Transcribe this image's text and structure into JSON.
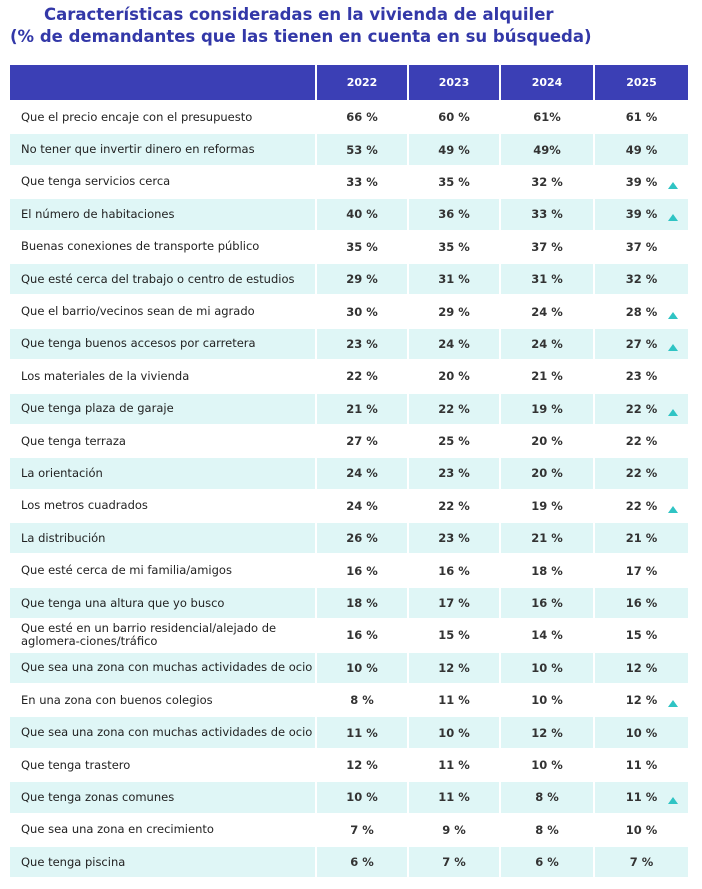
{
  "title": [
    "Características consideradas en la vivienda de alquiler",
    "(% de demandantes que las tienen en cuenta en su búsqueda)"
  ],
  "table": {
    "header": [
      "2022",
      "2023",
      "2024",
      "2025"
    ],
    "rows": [
      {
        "label": "Que el precio encaje con el presupuesto",
        "cells": [
          "66 %",
          "60 %",
          "61%",
          "61 %"
        ],
        "up": false
      },
      {
        "label": "No tener que invertir dinero en reformas",
        "cells": [
          "53 %",
          "49 %",
          "49%",
          "49 %"
        ],
        "up": false
      },
      {
        "label": "Que tenga servicios cerca",
        "cells": [
          "33 %",
          "35 %",
          "32 %",
          "39 %"
        ],
        "up": true
      },
      {
        "label": "El número de habitaciones",
        "cells": [
          "40 %",
          "36 %",
          "33 %",
          "39 %"
        ],
        "up": true
      },
      {
        "label": "Buenas conexiones de transporte público",
        "cells": [
          "35 %",
          "35 %",
          "37 %",
          "37 %"
        ],
        "up": false
      },
      {
        "label": "Que esté cerca del trabajo o centro de estudios",
        "cells": [
          "29 %",
          "31 %",
          "31 %",
          "32 %"
        ],
        "up": false
      },
      {
        "label": "Que el barrio/vecinos sean de mi agrado",
        "cells": [
          "30 %",
          "29 %",
          "24 %",
          "28 %"
        ],
        "up": true
      },
      {
        "label": "Que tenga buenos accesos por carretera",
        "cells": [
          "23 %",
          "24 %",
          "24 %",
          "27 %"
        ],
        "up": true
      },
      {
        "label": "Los materiales de la vivienda",
        "cells": [
          "22 %",
          "20 %",
          "21 %",
          "23 %"
        ],
        "up": false
      },
      {
        "label": "Que tenga plaza de garaje",
        "cells": [
          "21 %",
          "22 %",
          "19 %",
          "22 %"
        ],
        "up": true
      },
      {
        "label": "Que tenga terraza",
        "cells": [
          "27 %",
          "25 %",
          "20 %",
          "22 %"
        ],
        "up": false
      },
      {
        "label": "La orientación",
        "cells": [
          "24 %",
          "23 %",
          "20 %",
          "22 %"
        ],
        "up": false
      },
      {
        "label": "Los metros cuadrados",
        "cells": [
          "24 %",
          "22 %",
          "19 %",
          "22 %"
        ],
        "up": true
      },
      {
        "label": "La distribución",
        "cells": [
          "26 %",
          "23 %",
          "21 %",
          "21 %"
        ],
        "up": false
      },
      {
        "label": "Que esté cerca de mi familia/amigos",
        "cells": [
          "16 %",
          "16 %",
          "18 %",
          "17 %"
        ],
        "up": false
      },
      {
        "label": "Que tenga una altura que yo busco",
        "cells": [
          "18 %",
          "17 %",
          "16 %",
          "16 %"
        ],
        "up": false
      },
      {
        "label": "Que esté en un barrio residencial/alejado de aglomera-ciones/tráfico",
        "cells": [
          "16 %",
          "15 %",
          "14 %",
          "15 %"
        ],
        "up": false
      },
      {
        "label": "Que sea una zona con muchas actividades de ocio",
        "cells": [
          "10 %",
          "12 %",
          "10 %",
          "12 %"
        ],
        "up": false
      },
      {
        "label": "En una zona con buenos colegios",
        "cells": [
          "8 %",
          "11 %",
          "10 %",
          "12 %"
        ],
        "up": true
      },
      {
        "label": "Que sea una zona con muchas actividades de ocio",
        "cells": [
          "11 %",
          "10 %",
          "12 %",
          "10 %"
        ],
        "up": false
      },
      {
        "label": "Que tenga trastero",
        "cells": [
          "12 %",
          "11 %",
          "10 %",
          "11 %"
        ],
        "up": false
      },
      {
        "label": "Que tenga zonas comunes",
        "cells": [
          "10 %",
          "11 %",
          "8 %",
          "11 %"
        ],
        "up": true
      },
      {
        "label": "Que sea una zona en crecimiento",
        "cells": [
          "7 %",
          "9 %",
          "8 %",
          "10 %"
        ],
        "up": false
      },
      {
        "label": "Que tenga piscina",
        "cells": [
          "6 %",
          "7 %",
          "6 %",
          "7 %"
        ],
        "up": false
      }
    ]
  }
}
